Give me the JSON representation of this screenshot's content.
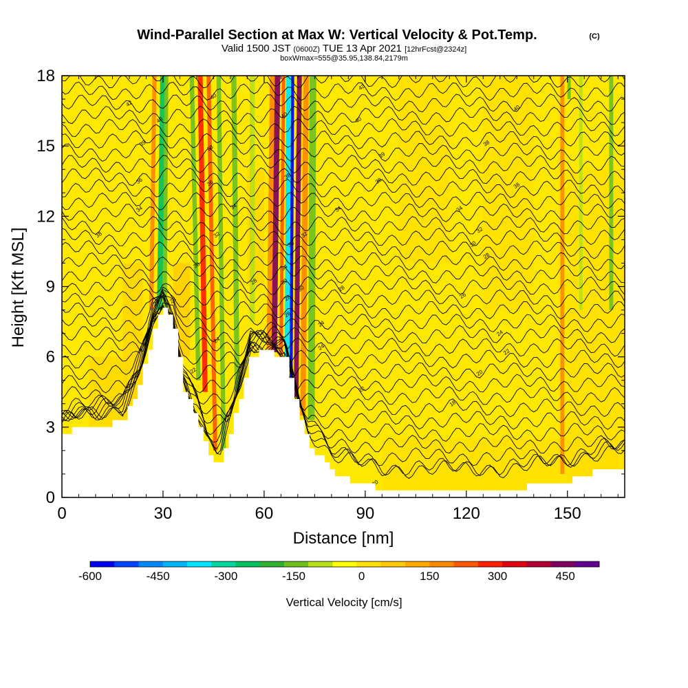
{
  "header": {
    "title": "Wind-Parallel Section at Max W: Vertical Velocity & Pot.Temp.",
    "copyright": "(C)",
    "valid_prefix": "Valid 1500 JST",
    "valid_zulu": "(0600Z)",
    "valid_date": "TUE 13 Apr 2021",
    "forecast": "[12hrFcst@2324z]",
    "box": "boxWmax=555@35.95,138.84,2179m"
  },
  "chart_data": {
    "type": "heatmap",
    "title": "Wind-Parallel Section at Max W: Vertical Velocity & Pot.Temp.",
    "xlabel": "Distance [nm]",
    "ylabel": "Height [Kft MSL]",
    "xlim": [
      0,
      167
    ],
    "ylim": [
      0,
      18
    ],
    "x_ticks": [
      0,
      30,
      60,
      90,
      120,
      150
    ],
    "y_ticks": [
      0,
      3,
      6,
      9,
      12,
      15,
      18
    ],
    "colorbar": {
      "label": "Vertical Velocity [cm/s]",
      "tick_labels": [
        "-600",
        "-450",
        "-300",
        "-150",
        "0",
        "150",
        "300",
        "450"
      ],
      "tick_values": [
        -600,
        -450,
        -300,
        -150,
        0,
        150,
        300,
        450
      ],
      "range": [
        -600,
        525
      ],
      "colors": [
        "#0000ee",
        "#0044ff",
        "#0088ff",
        "#00b4ff",
        "#00e4ff",
        "#00d8a0",
        "#00c060",
        "#30b030",
        "#70c020",
        "#b8e018",
        "#ffff00",
        "#ffe000",
        "#ffc800",
        "#ffa800",
        "#ff8800",
        "#ff5800",
        "#ff2000",
        "#e00010",
        "#b00030",
        "#800060",
        "#600090"
      ]
    },
    "terrain_profile": {
      "x": [
        0,
        3,
        10,
        18,
        23,
        27,
        30,
        33,
        36,
        40,
        43,
        46,
        47,
        50,
        53,
        56,
        60,
        63,
        66,
        70,
        73,
        80,
        88,
        95,
        110,
        130,
        150,
        160,
        167
      ],
      "y": [
        2.6,
        2.9,
        3.0,
        3.3,
        5.0,
        7.3,
        8.1,
        7.2,
        4.6,
        3.2,
        1.8,
        1.4,
        1.5,
        2.9,
        4.6,
        6.1,
        6.2,
        6.1,
        5.9,
        3.6,
        2.3,
        1.0,
        0.6,
        0.3,
        0.3,
        0.3,
        0.7,
        1.2,
        1.3
      ]
    },
    "theta_contours": {
      "units": "degC",
      "labels": [
        {
          "value": "42",
          "x": 20,
          "y": 16.8
        },
        {
          "value": "40",
          "x": 29,
          "y": 16.1
        },
        {
          "value": "39",
          "x": 24,
          "y": 15.1
        },
        {
          "value": "36",
          "x": 23,
          "y": 13.5
        },
        {
          "value": "34",
          "x": 23,
          "y": 12.3
        },
        {
          "value": "38",
          "x": 11,
          "y": 11.2
        },
        {
          "value": "30",
          "x": 40,
          "y": 9.9
        },
        {
          "value": "28",
          "x": 33,
          "y": 8.4
        },
        {
          "value": "26",
          "x": 28,
          "y": 8.3
        },
        {
          "value": "22",
          "x": 39,
          "y": 5.4
        },
        {
          "value": "40",
          "x": 45,
          "y": 17.1
        },
        {
          "value": "38",
          "x": 44,
          "y": 14.9
        },
        {
          "value": "36",
          "x": 44,
          "y": 13.4
        },
        {
          "value": "34",
          "x": 51,
          "y": 12.4
        },
        {
          "value": "32",
          "x": 46,
          "y": 11.2
        },
        {
          "value": "28",
          "x": 57,
          "y": 9.2
        },
        {
          "value": "24",
          "x": 46,
          "y": 6.7
        },
        {
          "value": "40",
          "x": 66,
          "y": 16.3
        },
        {
          "value": "38",
          "x": 67,
          "y": 13.7
        },
        {
          "value": "36",
          "x": 68,
          "y": 10.8
        },
        {
          "value": "34",
          "x": 66,
          "y": 9.8
        },
        {
          "value": "30",
          "x": 66,
          "y": 9.2
        },
        {
          "value": "30",
          "x": 71,
          "y": 8.9
        },
        {
          "value": "32",
          "x": 72,
          "y": 11.2
        },
        {
          "value": "28",
          "x": 67,
          "y": 8.5
        },
        {
          "value": "26",
          "x": 67,
          "y": 7.8
        },
        {
          "value": "24",
          "x": 77,
          "y": 7.4
        },
        {
          "value": "24",
          "x": 77,
          "y": 6.4
        },
        {
          "value": "22",
          "x": 89,
          "y": 4.6
        },
        {
          "value": "42",
          "x": 89,
          "y": 17.5
        },
        {
          "value": "40",
          "x": 88,
          "y": 16.1
        },
        {
          "value": "39",
          "x": 95,
          "y": 14.6
        },
        {
          "value": "38",
          "x": 94,
          "y": 13.5
        },
        {
          "value": "34",
          "x": 82,
          "y": 12.3
        },
        {
          "value": "28",
          "x": 83,
          "y": 8.9
        },
        {
          "value": "20",
          "x": 93,
          "y": 0.6
        },
        {
          "value": "40",
          "x": 135,
          "y": 16.6
        },
        {
          "value": "38",
          "x": 126,
          "y": 15.1
        },
        {
          "value": "36",
          "x": 135,
          "y": 13.3
        },
        {
          "value": "34",
          "x": 118,
          "y": 12.3
        },
        {
          "value": "32",
          "x": 124,
          "y": 11.4
        },
        {
          "value": "30",
          "x": 122,
          "y": 10.8
        },
        {
          "value": "28",
          "x": 126,
          "y": 10.3
        },
        {
          "value": "26",
          "x": 119,
          "y": 8.6
        },
        {
          "value": "24",
          "x": 130,
          "y": 7.0
        },
        {
          "value": "22",
          "x": 132,
          "y": 6.2
        },
        {
          "value": "20",
          "x": 124,
          "y": 5.3
        },
        {
          "value": "18",
          "x": 116,
          "y": 4.0
        }
      ]
    },
    "velocity_bands": [
      {
        "x_bottom": 29.0,
        "y_bottom": 8.0,
        "x_top": 30.0,
        "w": 1.6,
        "value": -250
      },
      {
        "x_bottom": 30.5,
        "y_bottom": 8.0,
        "x_top": 31.0,
        "w": 1.2,
        "value": -120
      },
      {
        "x_bottom": 26.5,
        "y_bottom": 8.0,
        "x_top": 27.5,
        "w": 1.2,
        "value": 160
      },
      {
        "x_bottom": 40.5,
        "y_bottom": 5.0,
        "x_top": 38.5,
        "w": 1.3,
        "value": -150
      },
      {
        "x_bottom": 42.5,
        "y_bottom": 4.5,
        "x_top": 41.0,
        "w": 1.5,
        "value": 280
      },
      {
        "x_bottom": 45.5,
        "y_bottom": 2.0,
        "x_top": 43.5,
        "w": 1.2,
        "value": 230
      },
      {
        "x_bottom": 48.0,
        "y_bottom": 2.0,
        "x_top": 46.5,
        "w": 1.3,
        "value": -130
      },
      {
        "x_bottom": 52.0,
        "y_bottom": 4.5,
        "x_top": 51.0,
        "w": 1.5,
        "value": -160
      },
      {
        "x_bottom": 61.5,
        "y_bottom": 6.2,
        "x_top": 62.5,
        "w": 1.5,
        "value": 200
      },
      {
        "x_bottom": 63.0,
        "y_bottom": 6.2,
        "x_top": 64.0,
        "w": 1.6,
        "value": 430
      },
      {
        "x_bottom": 65.0,
        "y_bottom": 6.0,
        "x_top": 65.8,
        "w": 1.0,
        "value": 250
      },
      {
        "x_bottom": 67.0,
        "y_bottom": 5.5,
        "x_top": 67.5,
        "w": 1.8,
        "value": -380
      },
      {
        "x_bottom": 68.0,
        "y_bottom": 5.0,
        "x_top": 68.5,
        "w": 0.9,
        "value": -580
      },
      {
        "x_bottom": 69.5,
        "y_bottom": 4.3,
        "x_top": 70.5,
        "w": 1.4,
        "value": 460
      },
      {
        "x_bottom": 71.5,
        "y_bottom": 3.5,
        "x_top": 72.5,
        "w": 1.6,
        "value": 180
      },
      {
        "x_bottom": 74.0,
        "y_bottom": 3.3,
        "x_top": 74.5,
        "w": 2.0,
        "value": -150
      },
      {
        "x_bottom": 56.5,
        "y_bottom": 7.5,
        "x_top": 56.5,
        "w": 1.5,
        "value": -70
      },
      {
        "x_bottom": 150.5,
        "y_bottom": 17.0,
        "x_top": 150.5,
        "w": 1.0,
        "value": -150
      },
      {
        "x_bottom": 148.5,
        "y_bottom": 1.0,
        "x_top": 148.5,
        "w": 1.2,
        "value": 160
      },
      {
        "x_bottom": 163.0,
        "y_bottom": 8.0,
        "x_top": 163.0,
        "w": 1.2,
        "value": -120
      },
      {
        "x_bottom": 154.0,
        "y_bottom": 8.0,
        "x_top": 154.0,
        "w": 1.0,
        "value": -100
      }
    ]
  }
}
